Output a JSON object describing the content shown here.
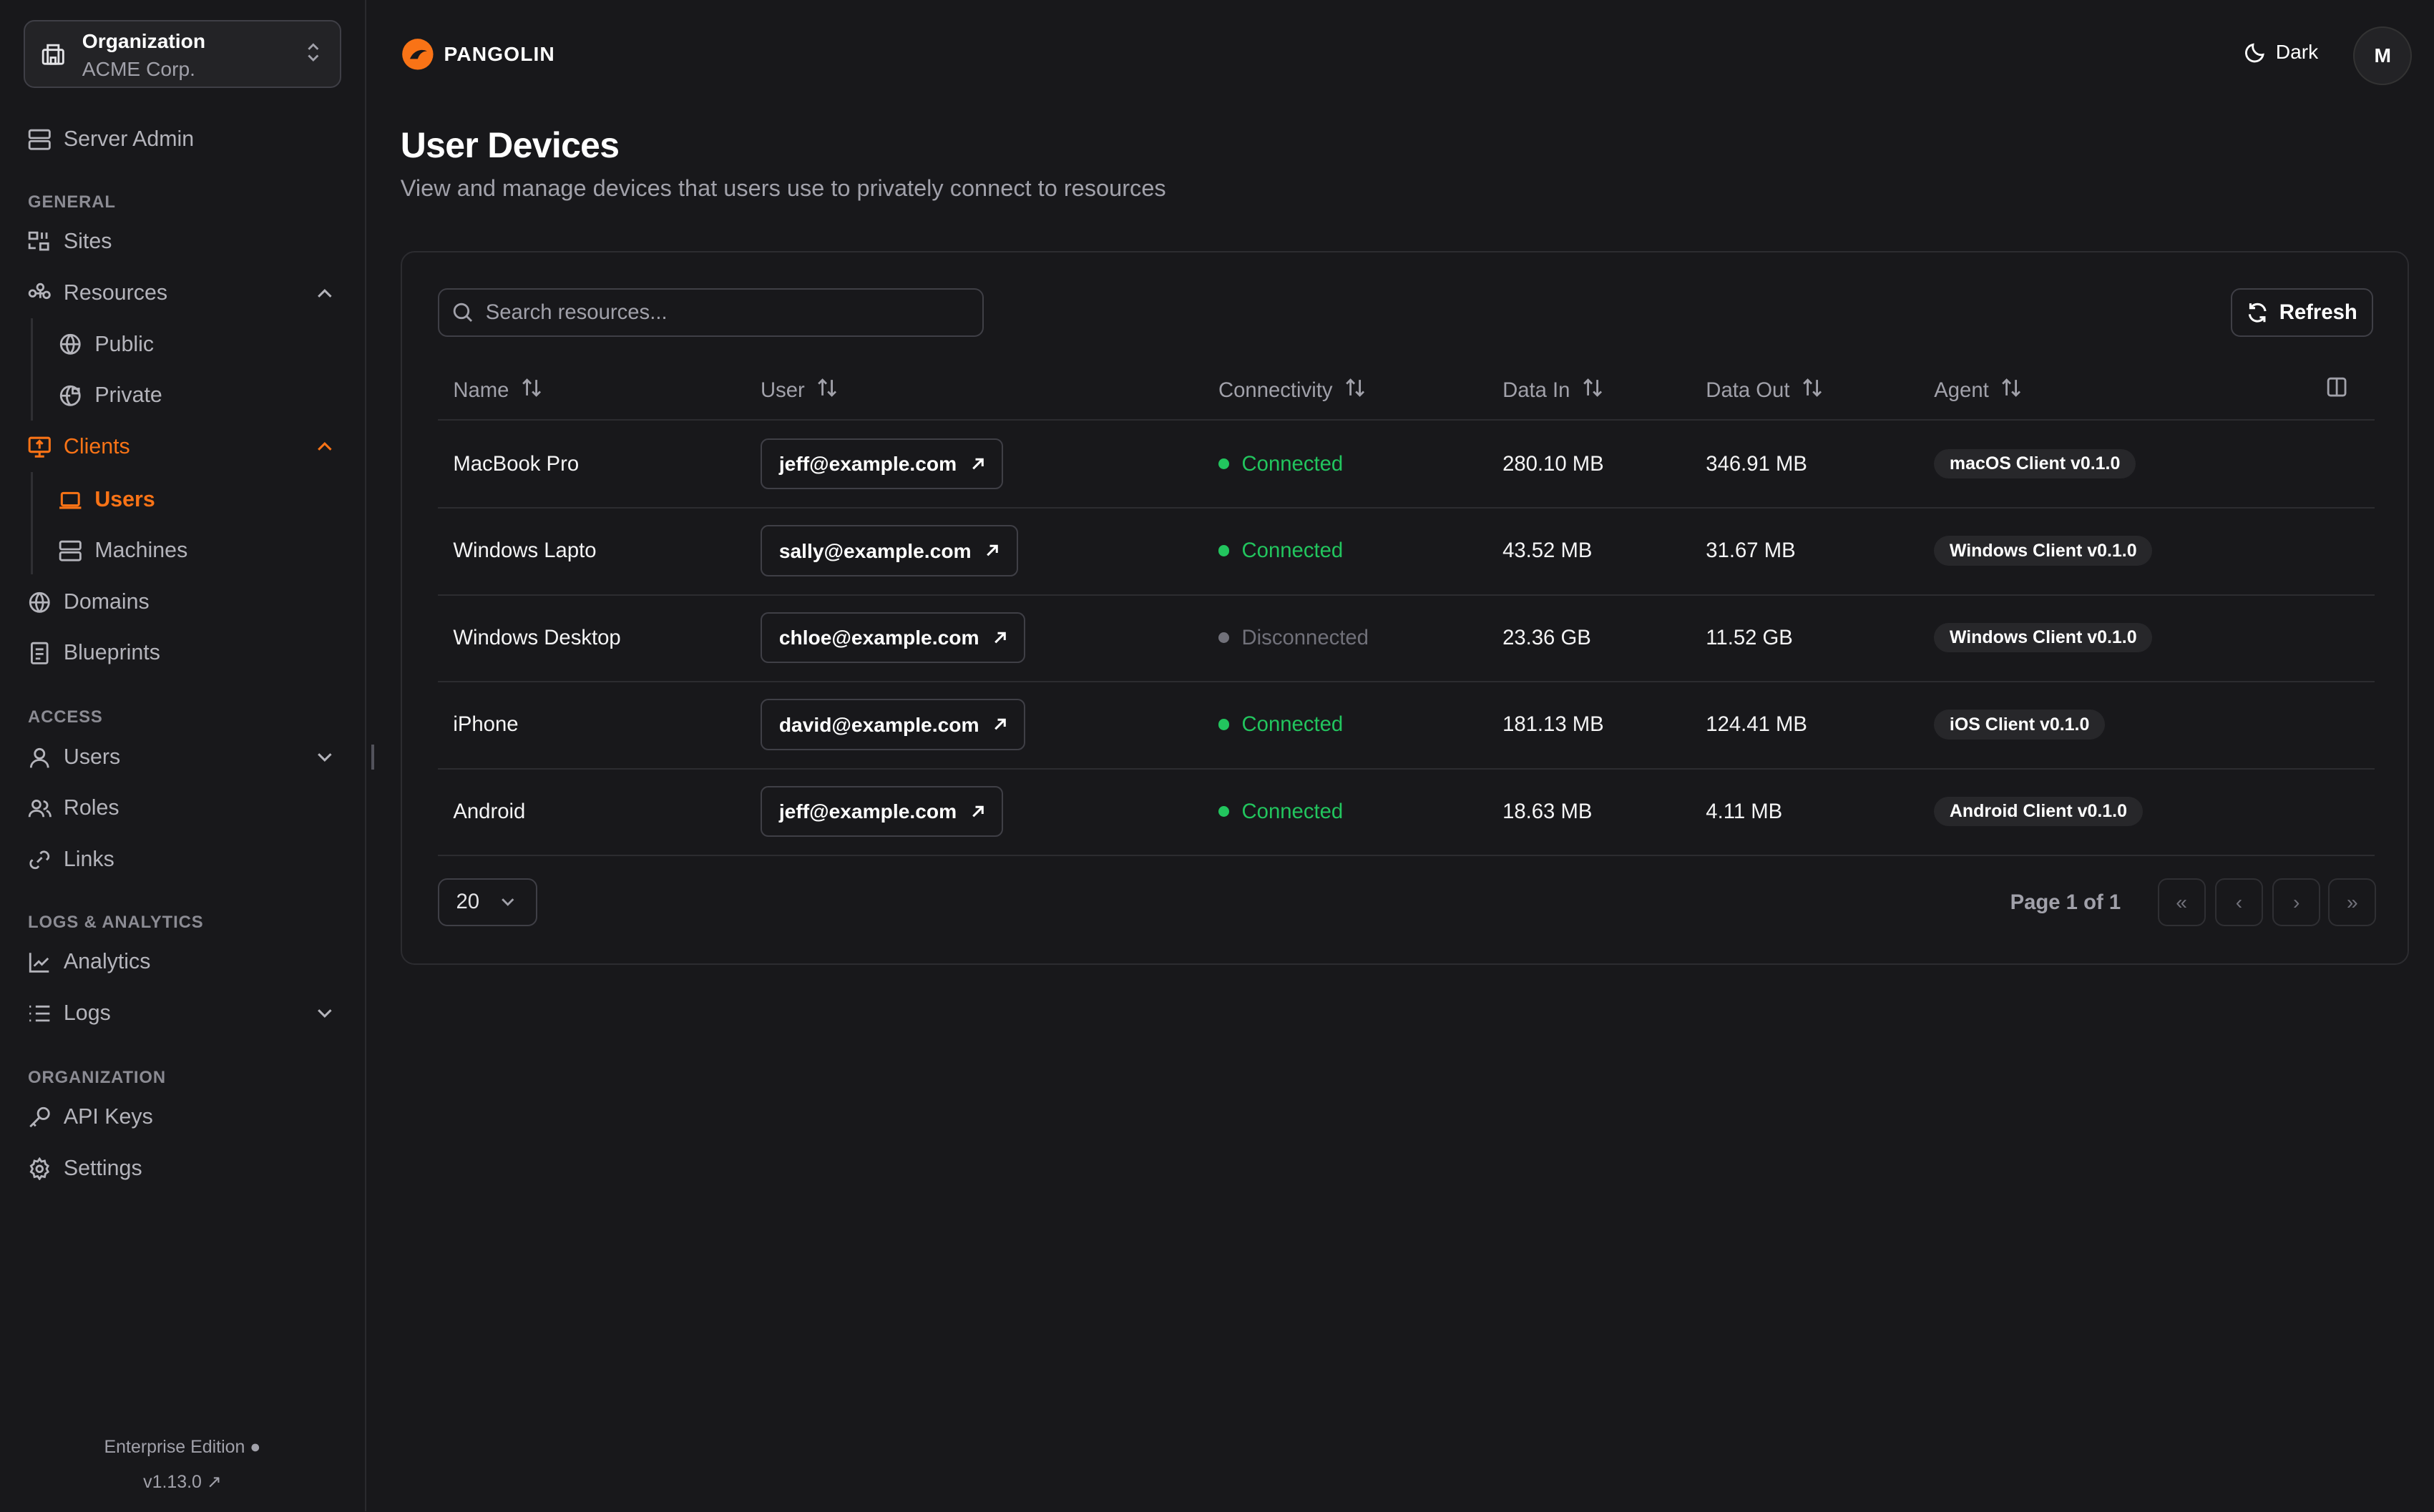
{
  "org": {
    "label": "Organization",
    "name": "ACME Corp."
  },
  "sidebar": {
    "server_admin": "Server Admin",
    "sections": {
      "general": "GENERAL",
      "access": "ACCESS",
      "logs": "LOGS & ANALYTICS",
      "organization": "ORGANIZATION"
    },
    "items": {
      "sites": "Sites",
      "resources": "Resources",
      "public": "Public",
      "private": "Private",
      "clients": "Clients",
      "users": "Users",
      "machines": "Machines",
      "domains": "Domains",
      "blueprints": "Blueprints",
      "access_users": "Users",
      "roles": "Roles",
      "links": "Links",
      "analytics": "Analytics",
      "logs": "Logs",
      "api_keys": "API Keys",
      "settings": "Settings"
    },
    "footer": {
      "edition": "Enterprise Edition",
      "version": "v1.13.0"
    }
  },
  "header": {
    "brand": "PANGOLIN",
    "theme": "Dark",
    "avatar": "M"
  },
  "page": {
    "title": "User Devices",
    "subtitle": "View and manage devices that users use to privately connect to resources"
  },
  "toolbar": {
    "search_placeholder": "Search resources...",
    "refresh": "Refresh"
  },
  "table": {
    "columns": [
      "Name",
      "User",
      "Connectivity",
      "Data In",
      "Data Out",
      "Agent"
    ],
    "rows": [
      {
        "name": "MacBook Pro",
        "user": "jeff@example.com",
        "status": "Connected",
        "data_in": "280.10 MB",
        "data_out": "346.91 MB",
        "agent": "macOS Client v0.1.0"
      },
      {
        "name": "Windows Lapto",
        "user": "sally@example.com",
        "status": "Connected",
        "data_in": "43.52 MB",
        "data_out": "31.67 MB",
        "agent": "Windows Client v0.1.0"
      },
      {
        "name": "Windows Desktop",
        "user": "chloe@example.com",
        "status": "Disconnected",
        "data_in": "23.36 GB",
        "data_out": "11.52 GB",
        "agent": "Windows Client v0.1.0"
      },
      {
        "name": "iPhone",
        "user": "david@example.com",
        "status": "Connected",
        "data_in": "181.13 MB",
        "data_out": "124.41 MB",
        "agent": "iOS Client v0.1.0"
      },
      {
        "name": "Android",
        "user": "jeff@example.com",
        "status": "Connected",
        "data_in": "18.63 MB",
        "data_out": "4.11 MB",
        "agent": "Android Client v0.1.0"
      }
    ]
  },
  "pagination": {
    "page_size": "20",
    "page_info": "Page 1 of 1"
  },
  "colors": {
    "accent": "#f97316",
    "connected": "#22c55e",
    "disconnected": "#71717a",
    "background": "#18181b"
  }
}
